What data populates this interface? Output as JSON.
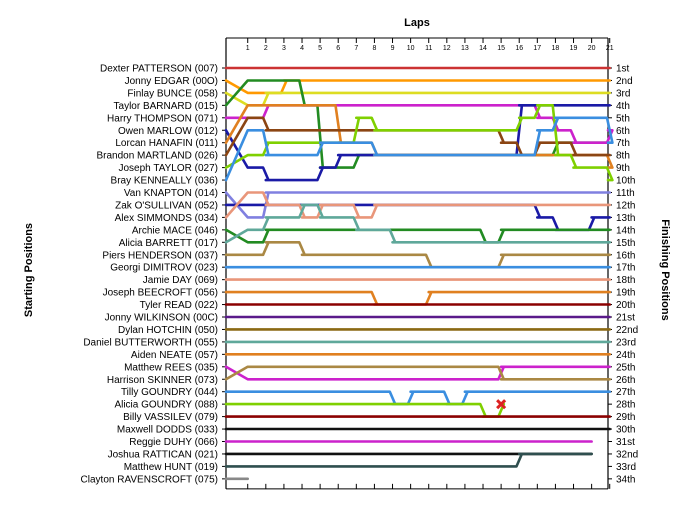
{
  "chart_data": {
    "type": "line",
    "title": "",
    "xlabel": "Laps",
    "ylabel_left": "Starting Positions",
    "ylabel_right": "Finishing Positions",
    "x": [
      1,
      2,
      3,
      4,
      5,
      6,
      7,
      8,
      9,
      10,
      11,
      12,
      13,
      14,
      15,
      16,
      17,
      18,
      19,
      20,
      21
    ],
    "x_tick_labels": [
      "1",
      "2",
      "3",
      "4",
      "5",
      "6",
      "7",
      "8",
      "9",
      "10",
      "11",
      "12",
      "13",
      "14",
      "15",
      "16",
      "17",
      "18",
      "19",
      "20",
      "21"
    ],
    "finishing_labels": [
      "1st",
      "2nd",
      "3rd",
      "4th",
      "5th",
      "6th",
      "7th",
      "8th",
      "9th",
      "10th",
      "11th",
      "12th",
      "13th",
      "14th",
      "15th",
      "16th",
      "17th",
      "18th",
      "19th",
      "20th",
      "21st",
      "22nd",
      "23rd",
      "24th",
      "25th",
      "26th",
      "27th",
      "28th",
      "29th",
      "30th",
      "31st",
      "32nd",
      "33rd",
      "34th"
    ],
    "starting_grid": [
      "Dexter PATTERSON (007)",
      "Jonny EDGAR (00O)",
      "Finlay BUNCE (058)",
      "Taylor BARNARD (015)",
      "Harry THOMPSON (071)",
      "Owen MARLOW (012)",
      "Lorcan HANAFIN (011)",
      "Brandon MARTLAND (026)",
      "Joseph TAYLOR (027)",
      "Bray KENNEALLY (036)",
      "Van KNAPTON (014)",
      "Zak O'SULLIVAN (052)",
      "Alex SIMMONDS (034)",
      "Archie MACE (046)",
      "Alicia BARRETT (017)",
      "Piers HENDERSON (037)",
      "Georgi DIMITROV (023)",
      "Jamie DAY (069)",
      "Joseph BEECROFT (056)",
      "Tyler READ (022)",
      "Jonny WILKINSON (00C)",
      "Dylan HOTCHIN (050)",
      "Daniel BUTTERWORTH (055)",
      "Aiden NEATE (057)",
      "Matthew REES (035)",
      "Harrison SKINNER (073)",
      "Tilly GOUNDRY (044)",
      "Alicia GOUNDRY (088)",
      "Billy VASSILEV (079)",
      "Maxwell DODDS (033)",
      "Reggie DUHY (066)",
      "Joshua RATTICAN (021)",
      "Matthew HUNT (019)",
      "Clayton RAVENSCROFT (075)"
    ],
    "series": [
      {
        "color": "#cc3333",
        "start": 1,
        "positions": [
          1,
          1,
          1,
          1,
          1,
          1,
          1,
          1,
          1,
          1,
          1,
          1,
          1,
          1,
          1,
          1,
          1,
          1,
          1,
          1,
          1
        ]
      },
      {
        "color": "#ff9900",
        "start": 2,
        "positions": [
          3,
          3,
          2,
          2,
          2,
          2,
          2,
          2,
          2,
          2,
          2,
          2,
          2,
          2,
          2,
          2,
          2,
          2,
          2,
          2,
          2
        ]
      },
      {
        "color": "#dddd22",
        "start": 3,
        "positions": [
          4,
          3,
          3,
          3,
          3,
          3,
          3,
          3,
          3,
          3,
          3,
          3,
          3,
          3,
          3,
          3,
          3,
          3,
          3,
          3,
          3
        ]
      },
      {
        "color": "#228b22",
        "start": 4,
        "positions": [
          2,
          2,
          2,
          4,
          9,
          9,
          8,
          8,
          8,
          8,
          8,
          8,
          8,
          8,
          8,
          8,
          8,
          7,
          7,
          7,
          7
        ]
      },
      {
        "color": "#cc22cc",
        "start": 5,
        "positions": [
          5,
          4,
          4,
          4,
          4,
          4,
          4,
          4,
          4,
          4,
          4,
          4,
          4,
          4,
          4,
          4,
          5,
          6,
          7,
          7,
          6
        ]
      },
      {
        "color": "#1a1aa6",
        "start": 6,
        "positions": [
          9,
          10,
          10,
          10,
          9,
          8,
          8,
          8,
          8,
          8,
          8,
          8,
          8,
          8,
          8,
          4,
          4,
          4,
          4,
          4,
          4
        ]
      },
      {
        "color": "#e08020",
        "start": 7,
        "positions": [
          4,
          4,
          4,
          4,
          4,
          7,
          7,
          8,
          8,
          8,
          8,
          8,
          8,
          8,
          8,
          8,
          8,
          8,
          8,
          8,
          9
        ]
      },
      {
        "color": "#8b4513",
        "start": 8,
        "positions": [
          5,
          6,
          6,
          6,
          6,
          6,
          6,
          6,
          6,
          6,
          6,
          6,
          6,
          6,
          7,
          8,
          7,
          7,
          8,
          8,
          8
        ]
      },
      {
        "color": "#7fd000",
        "start": 9,
        "positions": [
          8,
          7,
          7,
          7,
          7,
          7,
          5,
          6,
          6,
          6,
          6,
          6,
          6,
          6,
          6,
          5,
          4,
          8,
          9,
          9,
          10
        ]
      },
      {
        "color": "#3a8ee0",
        "start": 10,
        "positions": [
          6,
          8,
          8,
          8,
          7,
          7,
          7,
          8,
          8,
          8,
          8,
          8,
          8,
          8,
          8,
          8,
          6,
          5,
          5,
          5,
          7
        ]
      },
      {
        "color": "#8080e0",
        "start": 11,
        "positions": [
          13,
          11,
          11,
          11,
          11,
          11,
          11,
          11,
          11,
          11,
          11,
          11,
          11,
          11,
          11,
          11,
          11,
          11,
          11,
          11,
          11
        ]
      },
      {
        "color": "#1a1aa6",
        "start": 12,
        "positions": [
          12,
          12,
          12,
          12,
          12,
          12,
          12,
          12,
          12,
          12,
          12,
          12,
          12,
          12,
          12,
          12,
          13,
          14,
          14,
          13,
          13
        ]
      },
      {
        "color": "#e9967a",
        "start": 13,
        "positions": [
          11,
          12,
          12,
          13,
          12,
          12,
          13,
          12,
          12,
          12,
          12,
          12,
          12,
          12,
          12,
          12,
          12,
          12,
          12,
          12,
          12
        ]
      },
      {
        "color": "#228b22",
        "start": 14,
        "positions": [
          15,
          14,
          14,
          14,
          14,
          14,
          14,
          14,
          14,
          14,
          14,
          14,
          14,
          15,
          14,
          14,
          14,
          14,
          14,
          14,
          14
        ]
      },
      {
        "color": "#5fa89a",
        "start": 15,
        "positions": [
          14,
          13,
          13,
          12,
          13,
          13,
          14,
          14,
          15,
          15,
          15,
          15,
          15,
          15,
          15,
          15,
          15,
          15,
          15,
          15,
          15
        ]
      },
      {
        "color": "#aa8844",
        "start": 16,
        "positions": [
          16,
          15,
          15,
          16,
          16,
          16,
          16,
          16,
          16,
          16,
          17,
          17,
          17,
          17,
          16,
          16,
          16,
          16,
          16,
          16,
          16
        ]
      },
      {
        "color": "#3a8ee0",
        "start": 17,
        "positions": [
          17,
          17,
          17,
          17,
          17,
          17,
          17,
          17,
          17,
          17,
          17,
          17,
          17,
          17,
          17,
          17,
          17,
          17,
          17,
          17,
          17
        ]
      },
      {
        "color": "#e9967a",
        "start": 18,
        "positions": [
          18,
          18,
          18,
          18,
          18,
          18,
          18,
          18,
          18,
          18,
          18,
          18,
          18,
          18,
          18,
          18,
          18,
          18,
          18,
          18,
          18
        ]
      },
      {
        "color": "#e08020",
        "start": 19,
        "positions": [
          19,
          19,
          19,
          19,
          19,
          19,
          19,
          20,
          20,
          20,
          19,
          19,
          19,
          19,
          19,
          19,
          19,
          19,
          19,
          19,
          19
        ]
      },
      {
        "color": "#8b0000",
        "start": 20,
        "positions": [
          20,
          20,
          20,
          20,
          20,
          20,
          20,
          20,
          20,
          20,
          20,
          20,
          20,
          20,
          20,
          20,
          20,
          20,
          20,
          20,
          20
        ]
      },
      {
        "color": "#5a1a8a",
        "start": 21,
        "positions": [
          21,
          21,
          21,
          21,
          21,
          21,
          21,
          21,
          21,
          21,
          21,
          21,
          21,
          21,
          21,
          21,
          21,
          21,
          21,
          21,
          21
        ]
      },
      {
        "color": "#8b6914",
        "start": 22,
        "positions": [
          22,
          22,
          22,
          22,
          22,
          22,
          22,
          22,
          22,
          22,
          22,
          22,
          22,
          22,
          22,
          22,
          22,
          22,
          22,
          22,
          22
        ]
      },
      {
        "color": "#5fa89a",
        "start": 23,
        "positions": [
          23,
          23,
          23,
          23,
          23,
          23,
          23,
          23,
          23,
          23,
          23,
          23,
          23,
          23,
          23,
          23,
          23,
          23,
          23,
          23,
          23
        ]
      },
      {
        "color": "#e08020",
        "start": 24,
        "positions": [
          24,
          24,
          24,
          24,
          24,
          24,
          24,
          24,
          24,
          24,
          24,
          24,
          24,
          24,
          24,
          24,
          24,
          24,
          24,
          24,
          24
        ]
      },
      {
        "color": "#cc22cc",
        "start": 25,
        "positions": [
          26,
          26,
          26,
          26,
          26,
          26,
          26,
          26,
          26,
          26,
          26,
          26,
          26,
          26,
          25,
          25,
          25,
          25,
          25,
          25,
          25
        ]
      },
      {
        "color": "#aa8844",
        "start": 26,
        "positions": [
          25,
          25,
          25,
          25,
          25,
          25,
          25,
          25,
          25,
          25,
          25,
          25,
          25,
          25,
          26,
          26,
          26,
          26,
          26,
          26,
          26
        ]
      },
      {
        "color": "#3a8ee0",
        "start": 27,
        "positions": [
          27,
          27,
          27,
          27,
          27,
          27,
          27,
          27,
          28,
          27,
          27,
          28,
          27,
          27,
          27,
          27,
          27,
          27,
          27,
          27,
          27
        ]
      },
      {
        "color": "#7fd000",
        "start": 28,
        "positions": [
          28,
          28,
          28,
          28,
          28,
          28,
          28,
          28,
          28,
          28,
          28,
          28,
          28,
          29,
          28,
          null,
          null,
          null,
          null,
          null,
          null
        ]
      },
      {
        "color": "#8b0000",
        "start": 29,
        "positions": [
          29,
          29,
          29,
          29,
          29,
          29,
          29,
          29,
          29,
          29,
          29,
          29,
          29,
          29,
          29,
          29,
          29,
          29,
          29,
          29,
          29
        ]
      },
      {
        "color": "#111111",
        "start": 30,
        "positions": [
          30,
          30,
          30,
          30,
          30,
          30,
          30,
          30,
          30,
          30,
          30,
          30,
          30,
          30,
          30,
          30,
          30,
          30,
          30,
          30,
          30
        ]
      },
      {
        "color": "#cc22cc",
        "start": 31,
        "positions": [
          31,
          31,
          31,
          31,
          31,
          31,
          31,
          31,
          31,
          31,
          31,
          31,
          31,
          31,
          31,
          31,
          31,
          31,
          31,
          31,
          null
        ]
      },
      {
        "color": "#111111",
        "start": 32,
        "positions": [
          32,
          32,
          32,
          32,
          32,
          32,
          32,
          32,
          32,
          32,
          32,
          32,
          32,
          32,
          32,
          32,
          32,
          32,
          32,
          32,
          null
        ]
      },
      {
        "color": "#2f4f4f",
        "start": 33,
        "positions": [
          33,
          33,
          33,
          33,
          33,
          33,
          33,
          33,
          33,
          33,
          33,
          33,
          33,
          33,
          33,
          32,
          32,
          32,
          32,
          32,
          null
        ]
      },
      {
        "color": "#888888",
        "start": 34,
        "positions": [
          34,
          null,
          null,
          null,
          null,
          null,
          null,
          null,
          null,
          null,
          null,
          null,
          null,
          null,
          null,
          null,
          null,
          null,
          null,
          null,
          null
        ]
      }
    ],
    "retirement_marker": {
      "lap": 15,
      "position": 28,
      "color": "#dd2222"
    },
    "grid": false
  }
}
